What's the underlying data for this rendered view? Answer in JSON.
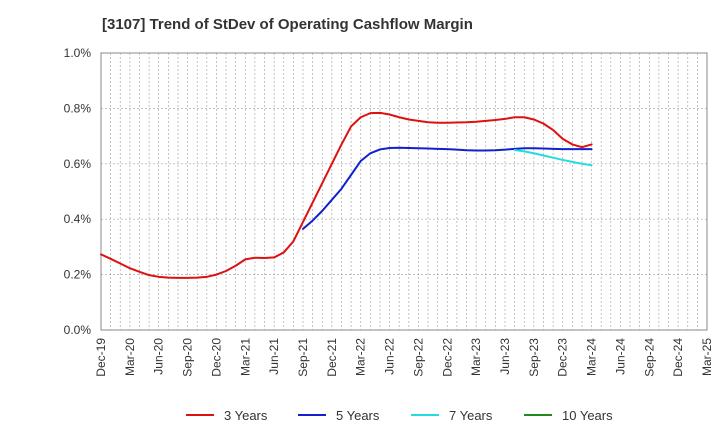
{
  "chart_data": {
    "type": "line",
    "title": "[3107]  Trend of StDev of Operating Cashflow Margin",
    "xlabel": "",
    "ylabel": "",
    "ylim": [
      0,
      1.0
    ],
    "y_ticks": [
      {
        "value": 0.0,
        "label": "0.0%"
      },
      {
        "value": 0.2,
        "label": "0.2%"
      },
      {
        "value": 0.4,
        "label": "0.4%"
      },
      {
        "value": 0.6,
        "label": "0.6%"
      },
      {
        "value": 0.8,
        "label": "0.8%"
      },
      {
        "value": 1.0,
        "label": "1.0%"
      }
    ],
    "x_categories": [
      "Dec-19",
      "Mar-20",
      "Jun-20",
      "Sep-20",
      "Dec-20",
      "Mar-21",
      "Jun-21",
      "Sep-21",
      "Dec-21",
      "Mar-22",
      "Jun-22",
      "Sep-22",
      "Dec-22",
      "Mar-23",
      "Jun-23",
      "Sep-23",
      "Dec-23",
      "Mar-24",
      "Jun-24",
      "Sep-24",
      "Dec-24",
      "Mar-25"
    ],
    "grid": true,
    "legend_position": "bottom",
    "series": [
      {
        "name": "3 Years",
        "color": "#dd1111",
        "x": [
          "2019-12",
          "2020-01",
          "2020-02",
          "2020-03",
          "2020-04",
          "2020-05",
          "2020-06",
          "2020-07",
          "2020-08",
          "2020-09",
          "2020-10",
          "2020-11",
          "2020-12",
          "2021-01",
          "2021-02",
          "2021-03",
          "2021-04",
          "2021-05",
          "2021-06",
          "2021-07",
          "2021-08",
          "2021-09",
          "2021-10",
          "2021-11",
          "2021-12",
          "2022-01",
          "2022-02",
          "2022-03",
          "2022-04",
          "2022-05",
          "2022-06",
          "2022-07",
          "2022-08",
          "2022-09",
          "2022-10",
          "2022-11",
          "2022-12",
          "2023-01",
          "2023-02",
          "2023-03",
          "2023-04",
          "2023-05",
          "2023-06",
          "2023-07",
          "2023-08",
          "2023-09",
          "2023-10",
          "2023-11",
          "2023-12",
          "2024-01",
          "2024-02",
          "2024-03"
        ],
        "values": [
          0.273,
          0.257,
          0.24,
          0.223,
          0.21,
          0.198,
          0.192,
          0.189,
          0.188,
          0.188,
          0.189,
          0.192,
          0.2,
          0.213,
          0.232,
          0.255,
          0.261,
          0.26,
          0.262,
          0.28,
          0.32,
          0.39,
          0.46,
          0.53,
          0.6,
          0.67,
          0.735,
          0.768,
          0.783,
          0.784,
          0.778,
          0.768,
          0.76,
          0.755,
          0.75,
          0.748,
          0.748,
          0.749,
          0.75,
          0.752,
          0.755,
          0.758,
          0.762,
          0.768,
          0.768,
          0.76,
          0.745,
          0.722,
          0.69,
          0.67,
          0.66,
          0.67
        ]
      },
      {
        "name": "5 Years",
        "color": "#1122cc",
        "x": [
          "2021-09",
          "2021-10",
          "2021-11",
          "2021-12",
          "2022-01",
          "2022-02",
          "2022-03",
          "2022-04",
          "2022-05",
          "2022-06",
          "2022-07",
          "2022-08",
          "2022-09",
          "2022-10",
          "2022-11",
          "2022-12",
          "2023-01",
          "2023-02",
          "2023-03",
          "2023-04",
          "2023-05",
          "2023-06",
          "2023-07",
          "2023-08",
          "2023-09",
          "2023-10",
          "2023-11",
          "2023-12",
          "2024-01",
          "2024-02",
          "2024-03"
        ],
        "values": [
          0.365,
          0.395,
          0.43,
          0.47,
          0.51,
          0.56,
          0.61,
          0.638,
          0.652,
          0.657,
          0.658,
          0.657,
          0.656,
          0.655,
          0.654,
          0.653,
          0.651,
          0.649,
          0.648,
          0.648,
          0.649,
          0.651,
          0.654,
          0.656,
          0.656,
          0.655,
          0.654,
          0.653,
          0.653,
          0.653,
          0.653
        ]
      },
      {
        "name": "7 Years",
        "color": "#22dddd",
        "x": [
          "2023-07",
          "2023-08",
          "2023-09",
          "2023-10",
          "2023-11",
          "2023-12",
          "2024-01",
          "2024-02",
          "2024-03"
        ],
        "values": [
          0.65,
          0.645,
          0.638,
          0.63,
          0.622,
          0.614,
          0.607,
          0.6,
          0.595
        ]
      },
      {
        "name": "10 Years",
        "color": "#228822",
        "x": [],
        "values": []
      }
    ]
  }
}
